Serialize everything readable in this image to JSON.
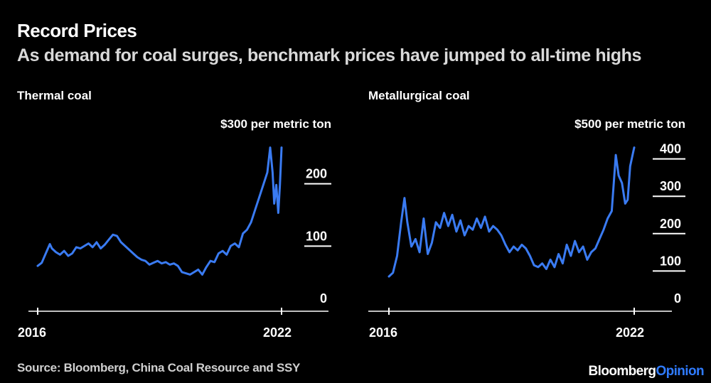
{
  "header": {
    "title": "Record Prices",
    "subtitle": "As demand for coal surges, benchmark prices have jumped to all-time highs"
  },
  "footer": {
    "source": "Source: Bloomberg, China Coal Resource and SSY",
    "brand_part1": "Bloomberg",
    "brand_part2": "Opinion"
  },
  "colors": {
    "line": "#3a7bf2",
    "background": "#000000",
    "accent": "#2f7bff"
  },
  "chart_data": [
    {
      "type": "line",
      "title": "Thermal coal",
      "unit_label": "$300 per metric ton",
      "ylim": [
        0,
        300
      ],
      "yticks": [
        0,
        100,
        200
      ],
      "xlim": [
        2016,
        2022.25
      ],
      "xticks": [
        2016,
        2022
      ],
      "series": [
        {
          "x": [
            2016.0,
            2016.1,
            2016.2,
            2016.3,
            2016.35,
            2016.45,
            2016.55,
            2016.65,
            2016.75,
            2016.85,
            2016.95,
            2017.05,
            2017.15,
            2017.25,
            2017.35,
            2017.45,
            2017.55,
            2017.65,
            2017.75,
            2017.85,
            2017.95,
            2018.05,
            2018.15,
            2018.25,
            2018.35,
            2018.45,
            2018.55,
            2018.65,
            2018.75,
            2018.85,
            2018.95,
            2019.05,
            2019.15,
            2019.25,
            2019.35,
            2019.45,
            2019.55,
            2019.65,
            2019.75,
            2019.85,
            2019.95,
            2020.05,
            2020.15,
            2020.25,
            2020.35,
            2020.45,
            2020.55,
            2020.65,
            2020.75,
            2020.85,
            2020.95,
            2021.05,
            2021.15,
            2021.25,
            2021.35,
            2021.45,
            2021.55,
            2021.65,
            2021.72,
            2021.78,
            2021.82,
            2021.87,
            2021.92,
            2021.96,
            2022.0
          ],
          "y": [
            50,
            55,
            70,
            85,
            78,
            72,
            68,
            74,
            66,
            70,
            80,
            78,
            82,
            86,
            80,
            88,
            78,
            84,
            92,
            100,
            98,
            88,
            82,
            76,
            70,
            64,
            60,
            58,
            52,
            55,
            58,
            54,
            56,
            52,
            54,
            50,
            40,
            38,
            36,
            40,
            44,
            36,
            48,
            58,
            56,
            70,
            74,
            68,
            82,
            86,
            80,
            102,
            108,
            120,
            140,
            160,
            180,
            200,
            240,
            200,
            150,
            180,
            135,
            180,
            240
          ]
        }
      ]
    },
    {
      "type": "line",
      "title": "Metallurgical coal",
      "unit_label": "$500 per metric ton",
      "ylim": [
        0,
        500
      ],
      "yticks": [
        0,
        100,
        200,
        300,
        400
      ],
      "xlim": [
        2016,
        2022.25
      ],
      "xticks": [
        2016,
        2022
      ],
      "series": [
        {
          "x": [
            2016.0,
            2016.1,
            2016.2,
            2016.3,
            2016.38,
            2016.45,
            2016.55,
            2016.65,
            2016.75,
            2016.85,
            2016.95,
            2017.05,
            2017.15,
            2017.25,
            2017.35,
            2017.45,
            2017.55,
            2017.65,
            2017.75,
            2017.85,
            2017.95,
            2018.05,
            2018.15,
            2018.25,
            2018.35,
            2018.45,
            2018.55,
            2018.65,
            2018.75,
            2018.85,
            2018.95,
            2019.05,
            2019.15,
            2019.25,
            2019.35,
            2019.45,
            2019.55,
            2019.65,
            2019.75,
            2019.85,
            2019.95,
            2020.05,
            2020.15,
            2020.25,
            2020.35,
            2020.45,
            2020.55,
            2020.65,
            2020.75,
            2020.85,
            2020.95,
            2021.05,
            2021.15,
            2021.25,
            2021.35,
            2021.45,
            2021.55,
            2021.62,
            2021.7,
            2021.78,
            2021.84,
            2021.9,
            2021.96,
            2022.0
          ],
          "y": [
            55,
            65,
            110,
            200,
            265,
            200,
            135,
            155,
            120,
            210,
            115,
            145,
            200,
            185,
            225,
            190,
            220,
            175,
            205,
            165,
            190,
            180,
            210,
            185,
            215,
            175,
            190,
            180,
            165,
            140,
            120,
            135,
            125,
            140,
            130,
            110,
            85,
            80,
            90,
            75,
            100,
            80,
            115,
            90,
            140,
            110,
            150,
            120,
            135,
            100,
            120,
            130,
            155,
            180,
            210,
            230,
            380,
            325,
            305,
            250,
            260,
            350,
            380,
            400
          ]
        }
      ]
    }
  ]
}
